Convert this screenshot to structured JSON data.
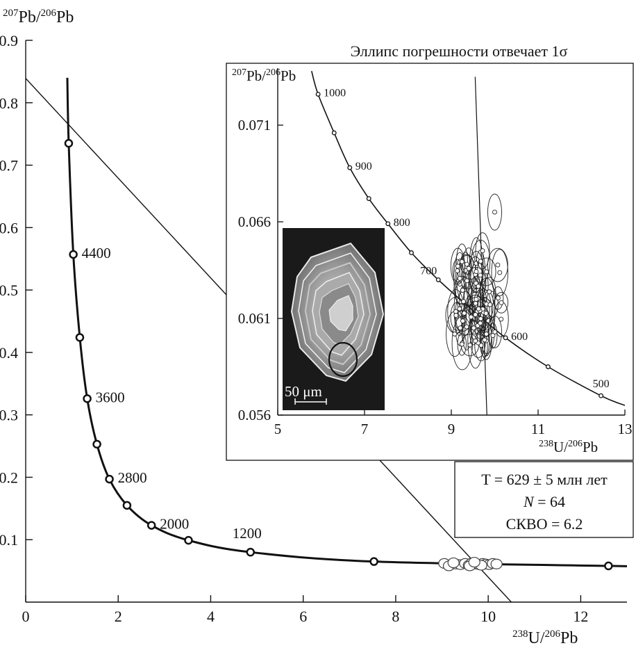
{
  "chart_data": [
    {
      "type": "scatter",
      "subtype": "concordia (Tera-Wasserburg) diagram",
      "title": "",
      "xlabel": "238U/206Pb",
      "ylabel": "207Pb/206Pb",
      "xlim": [
        0,
        13
      ],
      "ylim": [
        0,
        0.9
      ],
      "x_ticks": [
        0,
        2,
        4,
        6,
        8,
        10,
        12
      ],
      "y_ticks": [
        0.1,
        0.2,
        0.3,
        0.4,
        0.5,
        0.6,
        0.7,
        0.8,
        0.9
      ],
      "concordia_age_points": [
        {
          "x": 0.93,
          "y": 0.735
        },
        {
          "x": 1.03,
          "y": 0.557,
          "label": "4400"
        },
        {
          "x": 1.17,
          "y": 0.424
        },
        {
          "x": 1.33,
          "y": 0.326,
          "label": "3600"
        },
        {
          "x": 1.54,
          "y": 0.253
        },
        {
          "x": 1.81,
          "y": 0.197,
          "label": "2800"
        },
        {
          "x": 2.19,
          "y": 0.155
        },
        {
          "x": 2.72,
          "y": 0.123,
          "label": "2000"
        },
        {
          "x": 3.52,
          "y": 0.099
        },
        {
          "x": 4.86,
          "y": 0.08,
          "label": "1200"
        },
        {
          "x": 7.53,
          "y": 0.065
        },
        {
          "x": 12.6,
          "y": 0.058
        }
      ],
      "regression_line": {
        "x": [
          0,
          10.5
        ],
        "y": [
          0.839,
          0.0
        ]
      },
      "data_cluster": {
        "x_range": [
          9.0,
          10.2
        ],
        "y_mean": 0.061,
        "n_points": 64
      },
      "annotation": {
        "line1": "T = 629 ± 5 млн лет",
        "line2_italic": "N",
        "line2_rest": " = 64",
        "line3": "СКВО = 6.2"
      }
    },
    {
      "type": "scatter",
      "subtype": "inset concordia with error ellipses",
      "title": "Эллипс погрешности отвечает 1σ",
      "xlabel": "238U/206Pb",
      "ylabel": "207Pb/206Pb",
      "xlim": [
        5,
        13
      ],
      "ylim": [
        0.056,
        0.0735
      ],
      "x_ticks": [
        5,
        7,
        9,
        11,
        13
      ],
      "y_ticks": [
        0.056,
        0.061,
        0.066,
        0.071
      ],
      "concordia_age_points": [
        {
          "x": 5.93,
          "y": 0.0726,
          "label": "1000"
        },
        {
          "x": 6.3,
          "y": 0.0706
        },
        {
          "x": 6.66,
          "y": 0.0688,
          "label": "900"
        },
        {
          "x": 7.1,
          "y": 0.0672
        },
        {
          "x": 7.54,
          "y": 0.0659,
          "label": "800"
        },
        {
          "x": 8.08,
          "y": 0.0644
        },
        {
          "x": 8.7,
          "y": 0.063,
          "label": "700"
        },
        {
          "x": 10.25,
          "y": 0.06,
          "label": "600"
        },
        {
          "x": 11.23,
          "y": 0.0585
        },
        {
          "x": 12.45,
          "y": 0.057,
          "label": "500"
        }
      ],
      "concordia_curve": {
        "x": [
          5.93,
          6.3,
          6.66,
          7.1,
          7.54,
          8.08,
          8.7,
          9.45,
          10.25,
          11.23,
          12.45,
          13.0
        ],
        "y": [
          0.0726,
          0.0706,
          0.0688,
          0.0672,
          0.0659,
          0.0644,
          0.063,
          0.0615,
          0.06,
          0.0585,
          0.057,
          0.0565
        ]
      },
      "vertical_line": {
        "x": [
          9.82,
          9.55
        ],
        "y": [
          0.056,
          0.0735
        ]
      },
      "photo_scale_label": "50 μm"
    }
  ]
}
